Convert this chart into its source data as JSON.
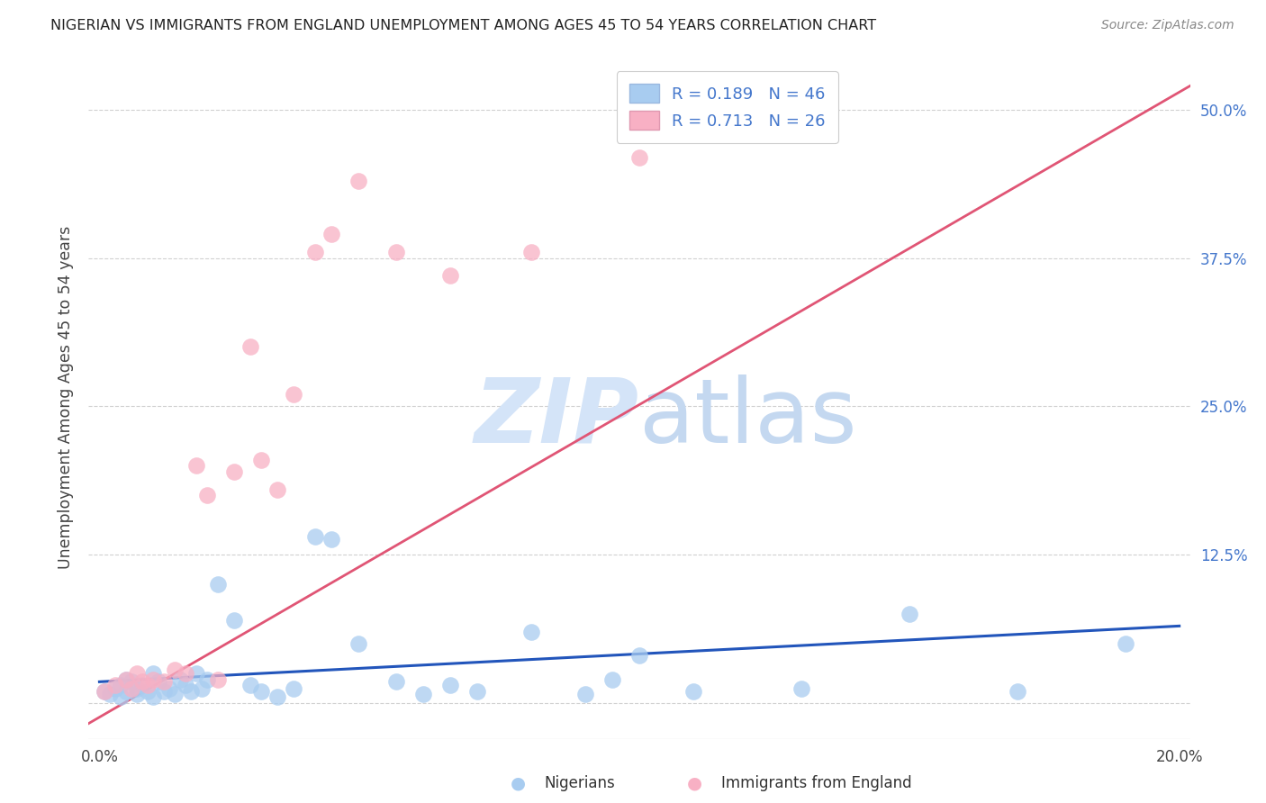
{
  "title": "NIGERIAN VS IMMIGRANTS FROM ENGLAND UNEMPLOYMENT AMONG AGES 45 TO 54 YEARS CORRELATION CHART",
  "source": "Source: ZipAtlas.com",
  "ylabel": "Unemployment Among Ages 45 to 54 years",
  "xlim": [
    -0.002,
    0.202
  ],
  "ylim": [
    -0.03,
    0.545
  ],
  "xticks": [
    0.0,
    0.04,
    0.08,
    0.12,
    0.16,
    0.2
  ],
  "xtick_labels": [
    "0.0%",
    "",
    "",
    "",
    "",
    "20.0%"
  ],
  "yticks_right": [
    0.0,
    0.125,
    0.25,
    0.375,
    0.5
  ],
  "ytick_labels_right": [
    "",
    "12.5%",
    "25.0%",
    "37.5%",
    "50.0%"
  ],
  "R1": 0.189,
  "N1": 46,
  "R2": 0.713,
  "N2": 26,
  "color_blue": "#A8CCF0",
  "color_pink": "#F8B0C4",
  "line_color_blue": "#2255BB",
  "line_color_pink": "#E05575",
  "watermark_color": "#D4E4F8",
  "grid_color": "#CCCCCC",
  "legend_color": "#4477CC",
  "nigerians_x": [
    0.001,
    0.002,
    0.003,
    0.004,
    0.004,
    0.005,
    0.005,
    0.006,
    0.007,
    0.007,
    0.008,
    0.009,
    0.01,
    0.01,
    0.011,
    0.012,
    0.013,
    0.014,
    0.015,
    0.016,
    0.017,
    0.018,
    0.019,
    0.02,
    0.022,
    0.025,
    0.028,
    0.03,
    0.033,
    0.036,
    0.04,
    0.043,
    0.048,
    0.055,
    0.06,
    0.065,
    0.07,
    0.08,
    0.09,
    0.095,
    0.1,
    0.11,
    0.13,
    0.15,
    0.17,
    0.19
  ],
  "nigerians_y": [
    0.01,
    0.008,
    0.012,
    0.005,
    0.015,
    0.02,
    0.01,
    0.018,
    0.008,
    0.012,
    0.015,
    0.01,
    0.025,
    0.005,
    0.018,
    0.01,
    0.012,
    0.008,
    0.02,
    0.015,
    0.01,
    0.025,
    0.012,
    0.02,
    0.1,
    0.07,
    0.015,
    0.01,
    0.005,
    0.012,
    0.14,
    0.138,
    0.05,
    0.018,
    0.008,
    0.015,
    0.01,
    0.06,
    0.008,
    0.02,
    0.04,
    0.01,
    0.012,
    0.075,
    0.01,
    0.05
  ],
  "england_x": [
    0.001,
    0.003,
    0.005,
    0.006,
    0.007,
    0.008,
    0.009,
    0.01,
    0.012,
    0.014,
    0.016,
    0.018,
    0.02,
    0.022,
    0.025,
    0.028,
    0.03,
    0.033,
    0.036,
    0.04,
    0.043,
    0.048,
    0.055,
    0.065,
    0.08,
    0.1
  ],
  "england_y": [
    0.01,
    0.015,
    0.02,
    0.012,
    0.025,
    0.018,
    0.015,
    0.02,
    0.018,
    0.028,
    0.025,
    0.2,
    0.175,
    0.02,
    0.195,
    0.3,
    0.205,
    0.18,
    0.26,
    0.38,
    0.395,
    0.44,
    0.38,
    0.36,
    0.38,
    0.46
  ],
  "blue_line_x0": 0.0,
  "blue_line_x1": 0.2,
  "blue_line_y0": 0.018,
  "blue_line_y1": 0.065,
  "pink_line_x0": -0.005,
  "pink_line_x1": 0.202,
  "pink_line_y0": -0.025,
  "pink_line_y1": 0.52
}
